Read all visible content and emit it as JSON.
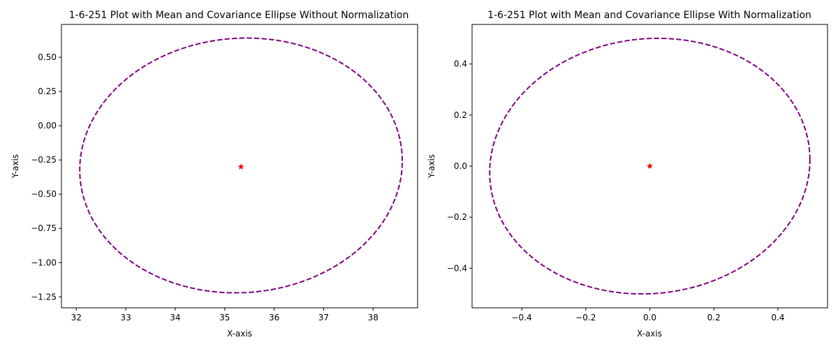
{
  "chart_data": [
    {
      "type": "scatter",
      "title": "1-6-251 Plot with Mean and Covariance Ellipse Without Normalization",
      "xlabel": "X-axis",
      "ylabel": "Y-axis",
      "xlim": [
        31.7,
        38.9
      ],
      "ylim": [
        -1.33,
        0.74
      ],
      "xticks": [
        32,
        33,
        34,
        35,
        36,
        37,
        38
      ],
      "xtick_labels": [
        "32",
        "33",
        "34",
        "35",
        "36",
        "37",
        "38"
      ],
      "yticks": [
        -1.25,
        -1.0,
        -0.75,
        -0.5,
        -0.25,
        0.0,
        0.25,
        0.5
      ],
      "ytick_labels": [
        "−1.25",
        "−1.00",
        "−0.75",
        "−0.50",
        "−0.25",
        "0.00",
        "0.25",
        "0.50"
      ],
      "grid": false,
      "mean": {
        "x": 35.33,
        "y": -0.3,
        "marker": "star",
        "color": "#ff0000"
      },
      "ellipse": {
        "center_x": 35.33,
        "center_y": -0.29,
        "x_extent": [
          32.07,
          38.59
        ],
        "y_extent": [
          -1.22,
          0.64
        ],
        "tilt": 0.035,
        "style": "dashed",
        "color": "#800080"
      }
    },
    {
      "type": "scatter",
      "title": "1-6-251 Plot with Mean and Covariance Ellipse With Normalization",
      "xlabel": "X-axis",
      "ylabel": "Y-axis",
      "xlim": [
        -0.555,
        0.555
      ],
      "ylim": [
        -0.555,
        0.555
      ],
      "xticks": [
        -0.4,
        -0.2,
        0.0,
        0.2,
        0.4
      ],
      "xtick_labels": [
        "−0.4",
        "−0.2",
        "0.0",
        "0.2",
        "0.4"
      ],
      "yticks": [
        -0.4,
        -0.2,
        0.0,
        0.2,
        0.4
      ],
      "ytick_labels": [
        "−0.4",
        "−0.2",
        "0.0",
        "0.2",
        "0.4"
      ],
      "grid": false,
      "mean": {
        "x": 0.0,
        "y": 0.0,
        "marker": "star",
        "color": "#ff0000"
      },
      "ellipse": {
        "center_x": 0.0,
        "center_y": 0.0,
        "x_extent": [
          -0.5,
          0.5
        ],
        "y_extent": [
          -0.5,
          0.5
        ],
        "tilt": 0.05,
        "style": "dashed",
        "color": "#800080"
      }
    }
  ]
}
